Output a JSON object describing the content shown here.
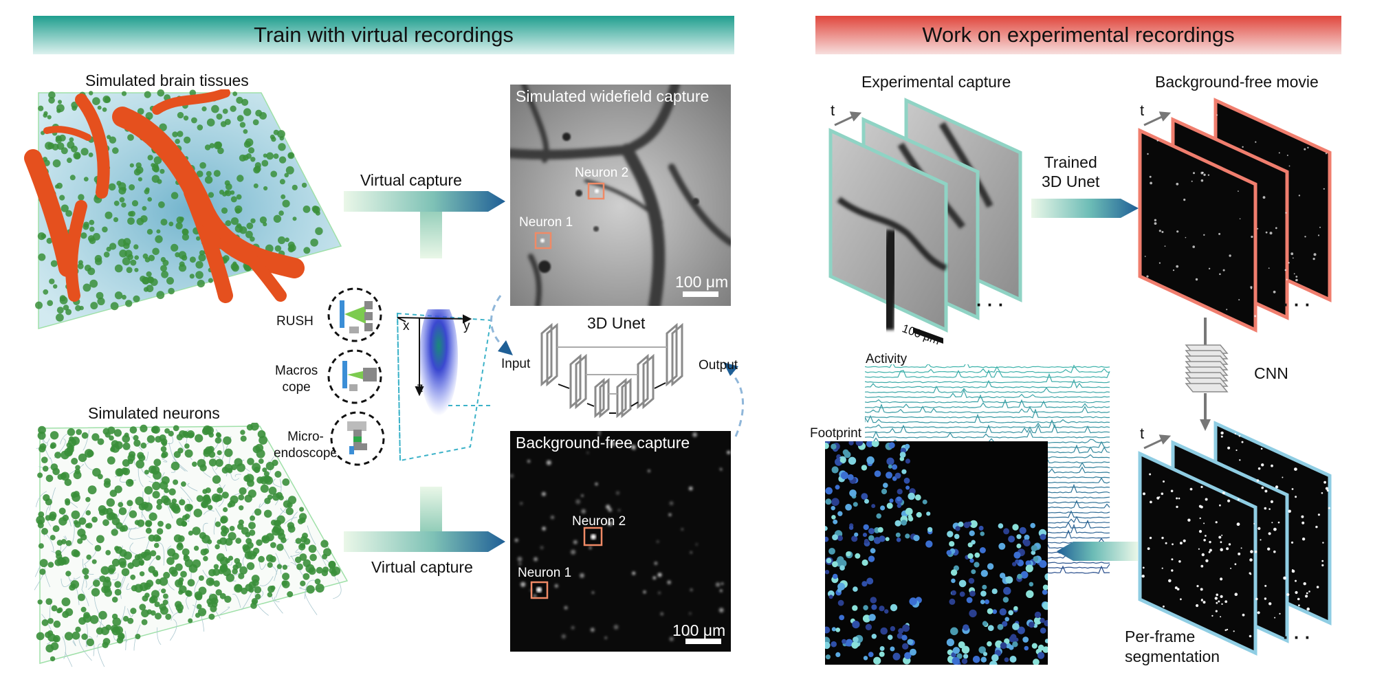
{
  "banners": {
    "left": "Train with virtual recordings",
    "right": "Work on experimental recordings"
  },
  "left_panel": {
    "brain_title": "Simulated brain tissues",
    "neurons_title": "Simulated neurons",
    "virtual_capture_top": "Virtual capture",
    "virtual_capture_bottom": "Virtual capture",
    "modalities": [
      "RUSH",
      "Macros\ncope",
      "Micro-\nendoscope"
    ],
    "axes": {
      "x": "x",
      "y": "y",
      "z": "z"
    },
    "widefield": {
      "title": "Simulated widefield capture",
      "neuron1": "Neuron 1",
      "neuron2": "Neuron 2",
      "scale": "100 μm"
    },
    "bgfree": {
      "title": "Background-free capture",
      "neuron1": "Neuron 1",
      "neuron2": "Neuron 2",
      "scale": "100 μm"
    },
    "unet": {
      "title": "3D Unet",
      "input": "Input",
      "output": "Output"
    }
  },
  "right_panel": {
    "experimental_title": "Experimental capture",
    "bgfree_movie_title": "Background-free movie",
    "trained_label": "Trained\n3D Unet",
    "cnn_label": "CNN",
    "segmentation_label": "Per-frame\nsegmentation",
    "activity_label": "Activity",
    "footprint_label": "Footprint",
    "time_label": "t",
    "scale": "100 μm",
    "ellipsis": "· · ·"
  },
  "colors": {
    "teal": "#1f9e8e",
    "red": "#e0463c",
    "arrow_blue": "#1f5f96",
    "frame_teal": "#8fd3c4",
    "frame_red": "#f07e6e",
    "frame_blue": "#8fcde3",
    "vessel": "#e5501e",
    "cell_green": "#3a8f3a",
    "marker_orange": "#f08a66"
  }
}
